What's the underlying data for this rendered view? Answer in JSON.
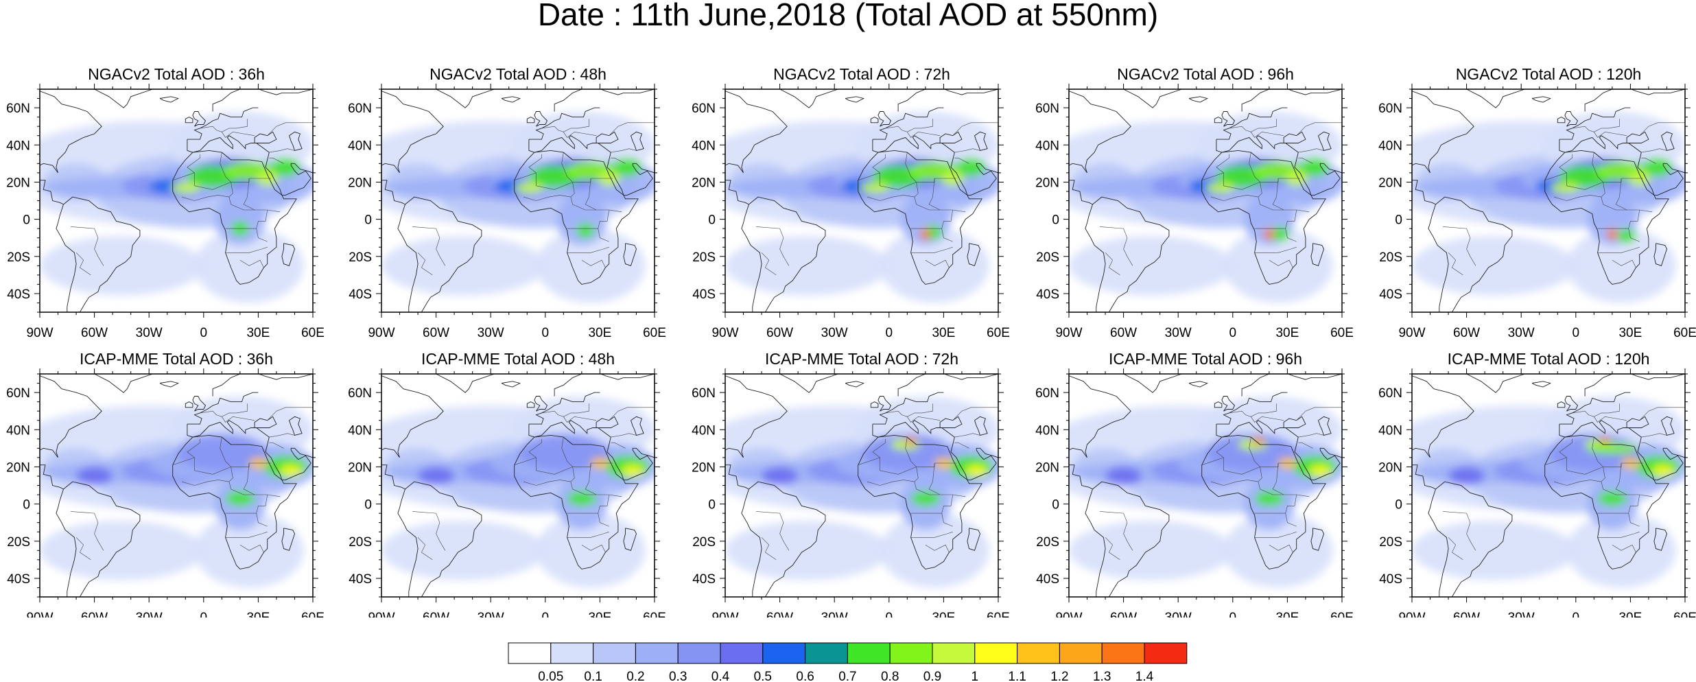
{
  "title": "Date : 11th June,2018 (Total AOD at 550nm)",
  "panel_rows": [
    {
      "model": "NGACv2",
      "titles": [
        "NGACv2 Total AOD : 36h",
        "NGACv2 Total AOD : 48h",
        "NGACv2 Total AOD : 72h",
        "NGACv2 Total AOD : 96h",
        "NGACv2 Total AOD : 120h"
      ]
    },
    {
      "model": "ICAP-MME",
      "titles": [
        "ICAP-MME Total AOD : 36h",
        "ICAP-MME Total AOD : 48h",
        "ICAP-MME Total AOD : 72h",
        "ICAP-MME Total AOD : 96h",
        "ICAP-MME Total AOD : 120h"
      ]
    }
  ],
  "map": {
    "lon_range": [
      -90,
      60
    ],
    "lat_range": [
      -50,
      70
    ],
    "lon_ticks": [
      "90W",
      "60W",
      "30W",
      "0",
      "30E",
      "60E"
    ],
    "lat_ticks": [
      "60N",
      "40N",
      "20N",
      "0",
      "20S",
      "40S"
    ]
  },
  "colorbar": {
    "labels": [
      "0.05",
      "0.1",
      "0.2",
      "0.3",
      "0.4",
      "0.5",
      "0.6",
      "0.7",
      "0.8",
      "0.9",
      "1",
      "1.1",
      "1.2",
      "1.3",
      "1.4"
    ],
    "colors": [
      "#ffffff",
      "#d7e0fb",
      "#b8c6f8",
      "#9db0f7",
      "#8593f3",
      "#6a6ef0",
      "#1a64ef",
      "#0b9494",
      "#3ee626",
      "#82f41a",
      "#c6f93c",
      "#fffd1a",
      "#fec21a",
      "#fea61a",
      "#fb7415",
      "#f42a12"
    ]
  }
}
